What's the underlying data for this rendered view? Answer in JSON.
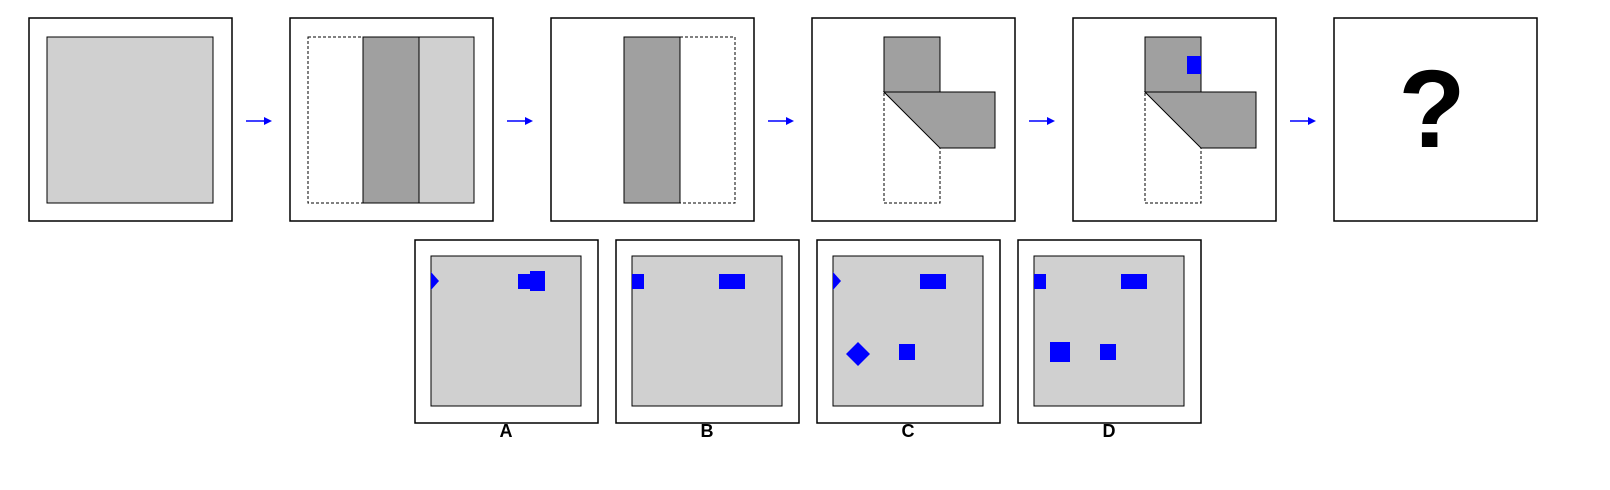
{
  "question_mark": "?",
  "options": [
    {
      "label": "A"
    },
    {
      "label": "B"
    },
    {
      "label": "C"
    },
    {
      "label": "D"
    }
  ],
  "colors": {
    "paper": "#d0d0d0",
    "fold": "#a0a0a0",
    "hole": "#0000ff",
    "arrow": "#0000ff",
    "frame": "#000000"
  }
}
